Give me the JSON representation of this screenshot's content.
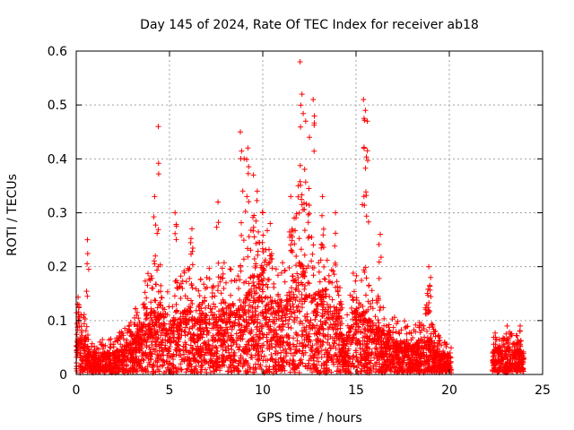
{
  "chart_data": {
    "type": "scatter",
    "title": "Day 145 of 2024, Rate Of TEC Index for receiver ab18",
    "xlabel": "GPS time / hours",
    "ylabel": "ROTI / TECUs",
    "xlim": [
      0,
      25
    ],
    "ylim": [
      0,
      0.6
    ],
    "xticks": [
      "0",
      "5",
      "10",
      "15",
      "20",
      "25"
    ],
    "yticks": [
      "0",
      "0.1",
      "0.2",
      "0.3",
      "0.4",
      "0.5",
      "0.6"
    ],
    "grid": true,
    "marker": "+",
    "color": "#ff0000",
    "series": [
      {
        "x": [
          0.0,
          0.1,
          0.2,
          0.3,
          0.5,
          0.7,
          1.0,
          1.5,
          2.0,
          2.5,
          3.0,
          3.3,
          3.6,
          3.9,
          4.2,
          4.5,
          4.8,
          5.2,
          5.6,
          6.0,
          6.4,
          6.8,
          7.2,
          7.6,
          8.0,
          8.4,
          8.8,
          9.1,
          9.4,
          9.7,
          10.0,
          10.3,
          10.6,
          10.9,
          11.2,
          11.5,
          11.8,
          12.1,
          12.4,
          12.7,
          13.0,
          13.3,
          13.6,
          14.0,
          14.4,
          14.8,
          15.1,
          15.4,
          15.7,
          16.0,
          16.4,
          16.8,
          17.2,
          17.6,
          18.0,
          18.4,
          18.8,
          19.2,
          19.6,
          20.0,
          22.3,
          22.6,
          22.9,
          23.2,
          23.5,
          23.8,
          24.0
        ],
        "y": [
          0.05,
          0.16,
          0.08,
          0.06,
          0.07,
          0.04,
          0.03,
          0.04,
          0.04,
          0.05,
          0.06,
          0.09,
          0.1,
          0.12,
          0.11,
          0.13,
          0.09,
          0.1,
          0.11,
          0.12,
          0.1,
          0.11,
          0.12,
          0.1,
          0.13,
          0.11,
          0.12,
          0.14,
          0.18,
          0.16,
          0.19,
          0.15,
          0.12,
          0.14,
          0.13,
          0.16,
          0.18,
          0.2,
          0.17,
          0.15,
          0.14,
          0.16,
          0.13,
          0.12,
          0.05,
          0.11,
          0.12,
          0.13,
          0.1,
          0.09,
          0.08,
          0.07,
          0.06,
          0.06,
          0.05,
          0.06,
          0.08,
          0.05,
          0.04,
          0.03,
          0.04,
          0.05,
          0.04,
          0.05,
          0.04,
          0.05,
          0.03
        ]
      }
    ],
    "peaks": {
      "x": [
        0.6,
        4.4,
        4.2,
        5.3,
        6.2,
        7.6,
        8.8,
        9.0,
        9.2,
        9.5,
        9.7,
        10.0,
        10.4,
        11.5,
        11.9,
        12.0,
        12.1,
        12.3,
        12.5,
        12.7,
        13.2,
        13.9,
        15.4,
        15.5,
        15.6,
        16.3,
        18.9,
        19.0,
        23.1,
        23.8
      ],
      "y": [
        0.25,
        0.46,
        0.33,
        0.3,
        0.27,
        0.32,
        0.45,
        0.4,
        0.42,
        0.37,
        0.34,
        0.3,
        0.28,
        0.33,
        0.35,
        0.58,
        0.52,
        0.47,
        0.44,
        0.51,
        0.33,
        0.3,
        0.51,
        0.49,
        0.47,
        0.26,
        0.2,
        0.18,
        0.09,
        0.09
      ]
    }
  }
}
